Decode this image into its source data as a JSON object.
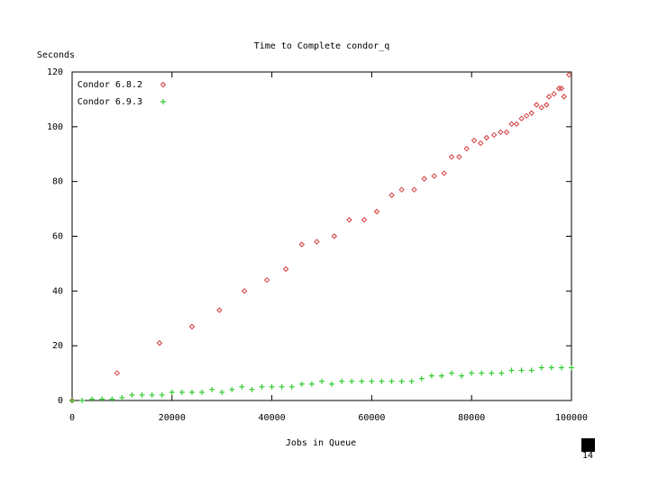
{
  "chart_data": {
    "type": "scatter",
    "title": "Time to Complete condor_q",
    "ylabel": "Seconds",
    "xlabel": "Jobs in Queue",
    "xlim": [
      0,
      100000
    ],
    "ylim": [
      0,
      120
    ],
    "xticks": [
      0,
      20000,
      40000,
      60000,
      80000,
      100000
    ],
    "yticks": [
      0,
      20,
      40,
      60,
      80,
      100,
      120
    ],
    "legend": "top-left",
    "series": [
      {
        "name": "Condor 6.8.2",
        "color": "#d23c3c",
        "marker": "diamond",
        "x": [
          0,
          9000,
          17500,
          24000,
          29500,
          34500,
          39000,
          42800,
          46000,
          49000,
          52500,
          55500,
          58500,
          61000,
          64000,
          66000,
          68500,
          70500,
          72500,
          74500,
          76000,
          77500,
          79000,
          80500,
          81800,
          83000,
          84500,
          85800,
          87000,
          88000,
          89000,
          90000,
          91000,
          92000,
          93000,
          94000,
          95000,
          95500,
          96500,
          97500,
          98000,
          98500,
          99500
        ],
        "values": [
          0,
          10,
          21,
          27,
          33,
          40,
          44,
          48,
          57,
          58,
          60,
          66,
          66,
          69,
          75,
          77,
          77,
          81,
          82,
          83,
          89,
          89,
          92,
          95,
          94,
          96,
          97,
          98,
          98,
          101,
          101,
          103,
          104,
          105,
          108,
          107,
          108,
          111,
          112,
          114,
          114,
          111,
          119
        ]
      },
      {
        "name": "Condor 6.9.3",
        "color": "#33cc33",
        "marker": "plus",
        "x": [
          0,
          2000,
          4000,
          6000,
          8000,
          10000,
          12000,
          14000,
          16000,
          18000,
          20000,
          22000,
          24000,
          26000,
          28000,
          30000,
          32000,
          34000,
          36000,
          38000,
          40000,
          42000,
          44000,
          46000,
          48000,
          50000,
          52000,
          54000,
          56000,
          58000,
          60000,
          62000,
          64000,
          66000,
          68000,
          70000,
          72000,
          74000,
          76000,
          78000,
          80000,
          82000,
          84000,
          86000,
          88000,
          90000,
          92000,
          94000,
          96000,
          98000,
          100000
        ],
        "values": [
          0,
          0,
          0.5,
          0.5,
          0.5,
          1,
          2,
          2,
          2,
          2,
          3,
          3,
          3,
          3,
          4,
          3,
          4,
          5,
          4,
          5,
          5,
          5,
          5,
          6,
          6,
          7,
          6,
          7,
          7,
          7,
          7,
          7,
          7,
          7,
          7,
          8,
          9,
          9,
          10,
          9,
          10,
          10,
          10,
          10,
          11,
          11,
          11,
          12,
          12,
          12,
          12
        ]
      }
    ]
  },
  "page_number": "14"
}
